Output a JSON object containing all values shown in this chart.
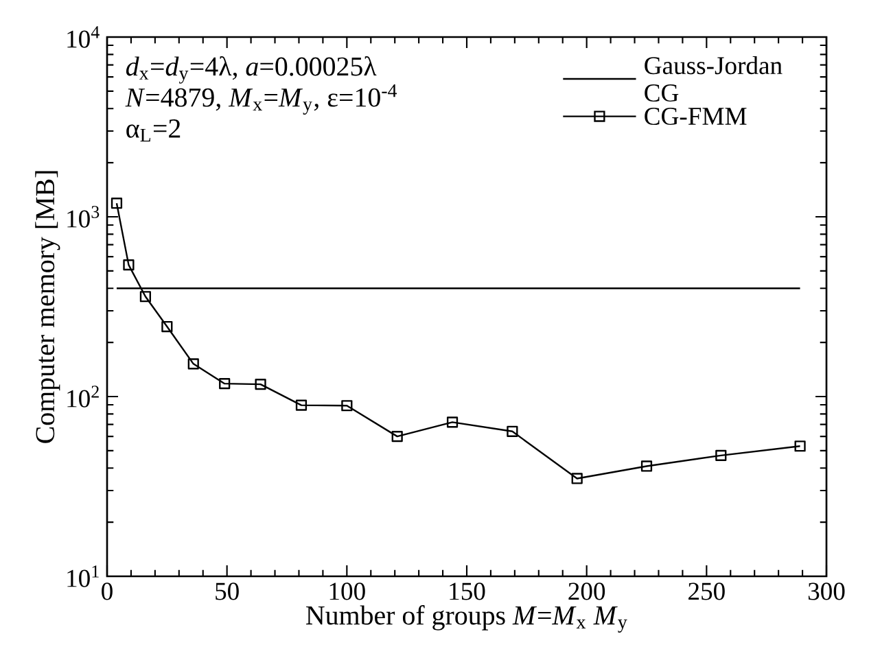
{
  "chart_data": {
    "type": "line",
    "xlabel": "Number of groups *M*=*M*$_{x}$ *M*$_{y}$",
    "ylabel": "Computer memory [MB]",
    "annotations": [
      "*d*$_{x}$=*d*$_{y}$=4λ, *a*=0.00025λ",
      "*N*=4879, *M*$_{x}$=*M*$_{y}$, ε=10$^{-4}$",
      "α$_{L}$=2"
    ],
    "log": "y",
    "xlim": [
      0,
      300
    ],
    "xticks": [
      0,
      50,
      100,
      150,
      200,
      250,
      300
    ],
    "ylim": [
      10,
      10000
    ],
    "yticks": [
      {
        "value": 10,
        "label": "10$^{1}$"
      },
      {
        "value": 100,
        "label": "10$^{2}$"
      },
      {
        "value": 1000,
        "label": "10$^{3}$"
      },
      {
        "value": 10000,
        "label": "10$^{4}$"
      }
    ],
    "legend": "top right",
    "grid": false,
    "series": [
      {
        "name": "Gauss-Jordan CG",
        "color": "#000000",
        "marker": "none",
        "x": [
          4,
          289
        ],
        "values": [
          400,
          400
        ]
      },
      {
        "name": "CG-FMM",
        "color": "#000000",
        "marker": "square",
        "x": [
          4,
          9,
          16,
          25,
          36,
          49,
          64,
          81,
          100,
          121,
          144,
          169,
          196,
          225,
          256,
          289
        ],
        "values": [
          1190,
          540,
          360,
          245,
          152,
          118,
          117,
          89.5,
          89,
          60,
          72,
          64,
          35,
          41,
          47,
          53
        ]
      }
    ]
  }
}
